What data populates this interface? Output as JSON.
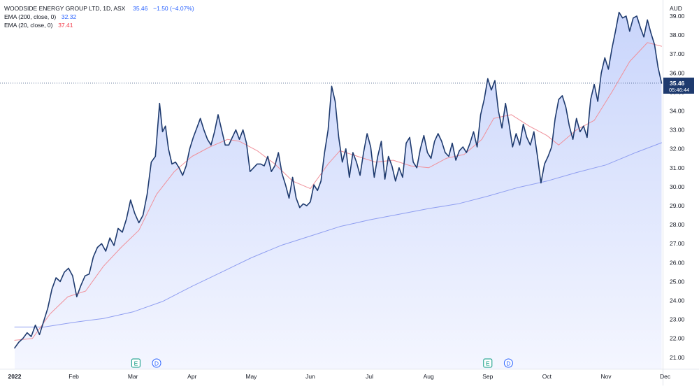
{
  "header": {
    "symbol": "WOODSIDE ENERGY GROUP LTD, 1D, ASX",
    "last": "35.46",
    "change": "−1.50 (−4.07%)"
  },
  "indicators": [
    {
      "label": "EMA (200, close, 0)",
      "value": "32.32",
      "color": "#2962ff"
    },
    {
      "label": "EMA (20, close, 0)",
      "value": "37.41",
      "color": "#f23645"
    }
  ],
  "price_tag": {
    "price": "35.46",
    "countdown": "05:46:44"
  },
  "currency": "AUD",
  "events": [
    {
      "month_index": 2.05,
      "letter": "E",
      "kind": "earnings"
    },
    {
      "month_index": 2.4,
      "letter": "D",
      "kind": "dividend"
    },
    {
      "month_index": 8.0,
      "letter": "E",
      "kind": "earnings"
    },
    {
      "month_index": 8.35,
      "letter": "D",
      "kind": "dividend"
    }
  ],
  "colors": {
    "price_line": "#1e3a6e",
    "area_top": "#c9d5fb",
    "area_bottom": "#f4f6ff",
    "ema200": "#8f9ef0",
    "ema20": "#f0909a",
    "price_tag_bg": "#1e3a6e",
    "axis_text": "#131722"
  },
  "chart_data": {
    "type": "area",
    "title": "",
    "xlabel": "",
    "ylabel": "AUD",
    "ylim": [
      20.5,
      39.75
    ],
    "yticks": [
      21,
      22,
      23,
      24,
      25,
      26,
      27,
      28,
      29,
      30,
      31,
      32,
      33,
      34,
      35,
      36,
      37,
      38,
      39
    ],
    "xticks": [
      "2022",
      "Feb",
      "Mar",
      "Apr",
      "May",
      "Jun",
      "Jul",
      "Aug",
      "Sep",
      "Oct",
      "Nov",
      "Dec"
    ],
    "x_unit": "months since start of 2022",
    "series": [
      {
        "name": "",
        "points": [
          [
            0.0,
            21.5
          ],
          [
            0.07,
            21.8
          ],
          [
            0.14,
            22.0
          ],
          [
            0.21,
            22.3
          ],
          [
            0.28,
            22.1
          ],
          [
            0.35,
            22.7
          ],
          [
            0.42,
            22.2
          ],
          [
            0.49,
            22.9
          ],
          [
            0.56,
            23.6
          ],
          [
            0.63,
            24.6
          ],
          [
            0.7,
            25.2
          ],
          [
            0.77,
            25.0
          ],
          [
            0.84,
            25.5
          ],
          [
            0.91,
            25.7
          ],
          [
            0.98,
            25.3
          ],
          [
            1.05,
            24.2
          ],
          [
            1.12,
            24.8
          ],
          [
            1.19,
            25.3
          ],
          [
            1.26,
            25.4
          ],
          [
            1.33,
            26.3
          ],
          [
            1.4,
            26.8
          ],
          [
            1.47,
            27.0
          ],
          [
            1.54,
            26.6
          ],
          [
            1.61,
            27.3
          ],
          [
            1.68,
            26.9
          ],
          [
            1.75,
            27.8
          ],
          [
            1.82,
            27.6
          ],
          [
            1.89,
            28.3
          ],
          [
            1.96,
            29.3
          ],
          [
            2.03,
            28.6
          ],
          [
            2.1,
            28.1
          ],
          [
            2.17,
            28.5
          ],
          [
            2.24,
            29.6
          ],
          [
            2.31,
            31.3
          ],
          [
            2.38,
            31.6
          ],
          [
            2.45,
            34.4
          ],
          [
            2.5,
            32.9
          ],
          [
            2.55,
            33.2
          ],
          [
            2.6,
            32.0
          ],
          [
            2.66,
            31.2
          ],
          [
            2.72,
            31.3
          ],
          [
            2.78,
            31.0
          ],
          [
            2.84,
            30.6
          ],
          [
            2.9,
            31.1
          ],
          [
            2.96,
            32.0
          ],
          [
            3.02,
            32.6
          ],
          [
            3.08,
            33.1
          ],
          [
            3.14,
            33.6
          ],
          [
            3.2,
            33.0
          ],
          [
            3.26,
            32.5
          ],
          [
            3.32,
            32.2
          ],
          [
            3.38,
            32.9
          ],
          [
            3.44,
            33.8
          ],
          [
            3.5,
            33.0
          ],
          [
            3.56,
            32.2
          ],
          [
            3.62,
            32.2
          ],
          [
            3.68,
            32.6
          ],
          [
            3.74,
            33.0
          ],
          [
            3.8,
            32.5
          ],
          [
            3.86,
            33.0
          ],
          [
            3.92,
            32.3
          ],
          [
            3.98,
            30.8
          ],
          [
            4.04,
            31.0
          ],
          [
            4.1,
            31.2
          ],
          [
            4.16,
            31.2
          ],
          [
            4.22,
            31.1
          ],
          [
            4.28,
            31.6
          ],
          [
            4.34,
            30.8
          ],
          [
            4.4,
            31.1
          ],
          [
            4.46,
            31.8
          ],
          [
            4.52,
            30.7
          ],
          [
            4.58,
            30.1
          ],
          [
            4.64,
            29.4
          ],
          [
            4.7,
            30.5
          ],
          [
            4.76,
            29.4
          ],
          [
            4.82,
            28.9
          ],
          [
            4.88,
            29.1
          ],
          [
            4.94,
            29.0
          ],
          [
            5.0,
            29.2
          ],
          [
            5.06,
            30.1
          ],
          [
            5.12,
            29.8
          ],
          [
            5.18,
            30.3
          ],
          [
            5.24,
            31.8
          ],
          [
            5.3,
            33.0
          ],
          [
            5.36,
            35.3
          ],
          [
            5.42,
            34.5
          ],
          [
            5.48,
            32.6
          ],
          [
            5.54,
            31.3
          ],
          [
            5.6,
            32.0
          ],
          [
            5.66,
            30.5
          ],
          [
            5.72,
            31.8
          ],
          [
            5.78,
            31.3
          ],
          [
            5.84,
            30.6
          ],
          [
            5.9,
            31.8
          ],
          [
            5.96,
            32.8
          ],
          [
            6.02,
            32.1
          ],
          [
            6.08,
            30.5
          ],
          [
            6.14,
            31.6
          ],
          [
            6.2,
            32.4
          ],
          [
            6.26,
            30.4
          ],
          [
            6.32,
            31.6
          ],
          [
            6.38,
            31.1
          ],
          [
            6.44,
            30.3
          ],
          [
            6.5,
            31.0
          ],
          [
            6.56,
            30.5
          ],
          [
            6.62,
            32.3
          ],
          [
            6.68,
            32.6
          ],
          [
            6.74,
            31.3
          ],
          [
            6.8,
            31.0
          ],
          [
            6.86,
            32.0
          ],
          [
            6.92,
            32.7
          ],
          [
            6.98,
            31.8
          ],
          [
            7.04,
            31.5
          ],
          [
            7.1,
            32.4
          ],
          [
            7.16,
            32.8
          ],
          [
            7.22,
            32.4
          ],
          [
            7.28,
            31.8
          ],
          [
            7.34,
            31.6
          ],
          [
            7.4,
            32.3
          ],
          [
            7.46,
            31.4
          ],
          [
            7.52,
            31.9
          ],
          [
            7.58,
            32.1
          ],
          [
            7.64,
            31.8
          ],
          [
            7.7,
            32.3
          ],
          [
            7.76,
            32.9
          ],
          [
            7.82,
            32.1
          ],
          [
            7.88,
            33.8
          ],
          [
            7.94,
            34.6
          ],
          [
            8.0,
            35.7
          ],
          [
            8.06,
            35.1
          ],
          [
            8.12,
            35.6
          ],
          [
            8.18,
            34.0
          ],
          [
            8.24,
            33.1
          ],
          [
            8.3,
            34.4
          ],
          [
            8.36,
            33.3
          ],
          [
            8.42,
            32.1
          ],
          [
            8.48,
            32.8
          ],
          [
            8.54,
            32.2
          ],
          [
            8.6,
            33.3
          ],
          [
            8.66,
            32.6
          ],
          [
            8.72,
            32.2
          ],
          [
            8.78,
            32.9
          ],
          [
            8.84,
            31.6
          ],
          [
            8.9,
            30.2
          ],
          [
            8.96,
            31.2
          ],
          [
            9.02,
            31.6
          ],
          [
            9.08,
            32.1
          ],
          [
            9.14,
            33.6
          ],
          [
            9.2,
            34.6
          ],
          [
            9.26,
            34.8
          ],
          [
            9.32,
            34.2
          ],
          [
            9.38,
            33.2
          ],
          [
            9.44,
            32.5
          ],
          [
            9.5,
            33.6
          ],
          [
            9.56,
            32.9
          ],
          [
            9.62,
            33.2
          ],
          [
            9.68,
            32.6
          ],
          [
            9.74,
            34.6
          ],
          [
            9.8,
            35.4
          ],
          [
            9.86,
            34.5
          ],
          [
            9.92,
            36.0
          ],
          [
            9.98,
            36.8
          ],
          [
            10.04,
            36.2
          ],
          [
            10.1,
            37.3
          ],
          [
            10.16,
            38.2
          ],
          [
            10.22,
            39.2
          ],
          [
            10.28,
            38.9
          ],
          [
            10.34,
            39.0
          ],
          [
            10.4,
            38.2
          ],
          [
            10.46,
            38.9
          ],
          [
            10.52,
            39.0
          ],
          [
            10.58,
            38.4
          ],
          [
            10.64,
            37.9
          ],
          [
            10.7,
            38.8
          ],
          [
            10.76,
            38.1
          ],
          [
            10.82,
            37.5
          ],
          [
            10.88,
            36.3
          ],
          [
            10.94,
            35.46
          ]
        ]
      },
      {
        "name": "EMA (200, close, 0)",
        "points": [
          [
            0.0,
            22.6
          ],
          [
            0.5,
            22.6
          ],
          [
            1.0,
            22.85
          ],
          [
            1.5,
            23.05
          ],
          [
            2.0,
            23.4
          ],
          [
            2.5,
            23.95
          ],
          [
            3.0,
            24.75
          ],
          [
            3.5,
            25.5
          ],
          [
            4.0,
            26.25
          ],
          [
            4.5,
            26.9
          ],
          [
            5.0,
            27.4
          ],
          [
            5.5,
            27.9
          ],
          [
            6.0,
            28.25
          ],
          [
            6.5,
            28.55
          ],
          [
            7.0,
            28.85
          ],
          [
            7.5,
            29.1
          ],
          [
            8.0,
            29.5
          ],
          [
            8.5,
            29.95
          ],
          [
            9.0,
            30.3
          ],
          [
            9.5,
            30.75
          ],
          [
            10.0,
            31.15
          ],
          [
            10.5,
            31.8
          ],
          [
            10.94,
            32.32
          ]
        ]
      },
      {
        "name": "EMA (20, close, 0)",
        "points": [
          [
            0.0,
            21.9
          ],
          [
            0.3,
            22.0
          ],
          [
            0.6,
            23.3
          ],
          [
            0.9,
            24.2
          ],
          [
            1.2,
            24.5
          ],
          [
            1.5,
            25.8
          ],
          [
            1.8,
            26.8
          ],
          [
            2.1,
            27.7
          ],
          [
            2.4,
            29.6
          ],
          [
            2.7,
            30.8
          ],
          [
            3.0,
            31.6
          ],
          [
            3.3,
            32.1
          ],
          [
            3.6,
            32.5
          ],
          [
            3.8,
            32.4
          ],
          [
            4.1,
            31.9
          ],
          [
            4.4,
            31.2
          ],
          [
            4.7,
            30.3
          ],
          [
            5.0,
            29.9
          ],
          [
            5.3,
            31.2
          ],
          [
            5.5,
            31.9
          ],
          [
            5.8,
            31.6
          ],
          [
            6.1,
            31.3
          ],
          [
            6.4,
            31.4
          ],
          [
            6.7,
            31.1
          ],
          [
            7.0,
            31.0
          ],
          [
            7.3,
            31.5
          ],
          [
            7.6,
            31.7
          ],
          [
            7.9,
            32.5
          ],
          [
            8.1,
            33.6
          ],
          [
            8.4,
            33.8
          ],
          [
            8.7,
            33.2
          ],
          [
            9.0,
            32.7
          ],
          [
            9.2,
            32.2
          ],
          [
            9.5,
            33.0
          ],
          [
            9.8,
            33.5
          ],
          [
            10.1,
            35.0
          ],
          [
            10.4,
            36.6
          ],
          [
            10.7,
            37.6
          ],
          [
            10.94,
            37.41
          ]
        ]
      }
    ]
  }
}
